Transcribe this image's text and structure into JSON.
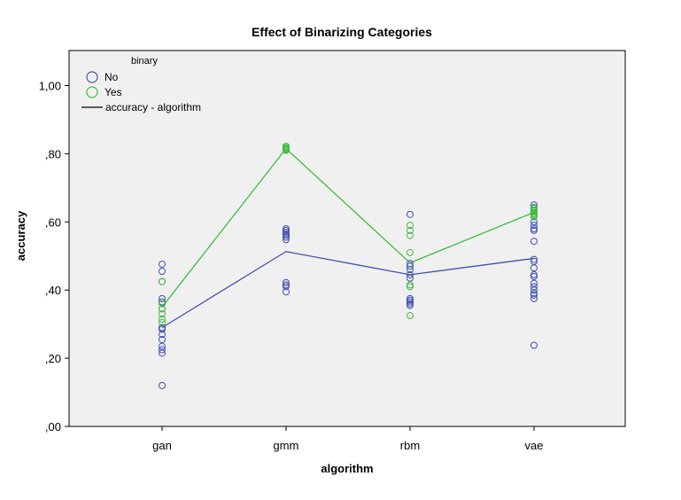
{
  "chart_data": {
    "type": "scatter",
    "title": "Effect of Binarizing Categories",
    "xlabel": "algorithm",
    "ylabel": "accuracy",
    "categories": [
      "gan",
      "gmm",
      "rbm",
      "vae"
    ],
    "ylim": [
      0,
      1.1
    ],
    "yticks": [
      0,
      0.2,
      0.4,
      0.6,
      0.8,
      1.0
    ],
    "ytick_labels": [
      ",00",
      ",20",
      ",40",
      ",60",
      ",80",
      "1,00"
    ],
    "grid": false,
    "plot_background": "#f0f0f0",
    "legend": {
      "title": "binary",
      "placement": "top-left",
      "line_label": "accuracy - algorithm"
    },
    "series": [
      {
        "name": "No",
        "color": "#3f51b0",
        "mean_line": [
          0.29,
          0.513,
          0.445,
          0.493
        ],
        "points": [
          [
            0.476,
            0.455,
            0.425,
            0.375,
            0.365,
            0.345,
            0.29,
            0.285,
            0.27,
            0.255,
            0.235,
            0.225,
            0.215,
            0.12
          ],
          [
            0.58,
            0.575,
            0.57,
            0.565,
            0.56,
            0.555,
            0.548,
            0.422,
            0.415,
            0.41,
            0.395
          ],
          [
            0.622,
            0.478,
            0.47,
            0.46,
            0.445,
            0.435,
            0.375,
            0.37,
            0.365,
            0.36,
            0.355
          ],
          [
            0.65,
            0.642,
            0.635,
            0.6,
            0.59,
            0.58,
            0.575,
            0.543,
            0.49,
            0.484,
            0.465,
            0.445,
            0.44,
            0.42,
            0.41,
            0.4,
            0.39,
            0.385,
            0.375,
            0.238
          ]
        ]
      },
      {
        "name": "Yes",
        "color": "#3dbd3d",
        "mean_line": [
          0.35,
          0.815,
          0.48,
          0.628
        ],
        "points": [
          [
            0.425,
            0.36,
            0.345,
            0.33,
            0.315,
            0.305
          ],
          [
            0.822,
            0.818,
            0.815,
            0.812,
            0.81
          ],
          [
            0.59,
            0.575,
            0.56,
            0.51,
            0.415,
            0.41,
            0.325
          ],
          [
            0.64,
            0.635,
            0.632,
            0.628,
            0.624,
            0.62,
            0.615
          ]
        ]
      }
    ]
  }
}
